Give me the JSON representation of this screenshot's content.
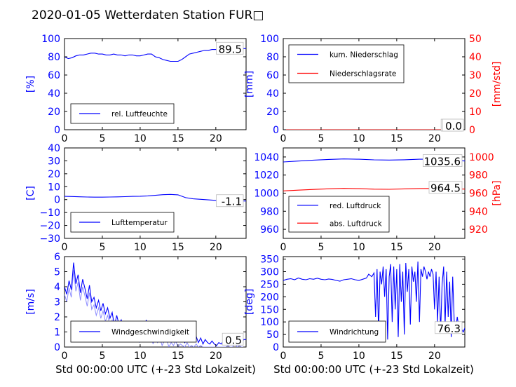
{
  "title": "2020-01-05 Wetterdaten Station FUR□",
  "xlabel": "Std 00:00:00 UTC (+-23 Std Lokalzeit)",
  "colors": {
    "primary": "#0000ff",
    "secondary": "#ff0000",
    "wind_fill": "#8c8cff"
  },
  "chart_data": [
    {
      "id": "humidity",
      "type": "line",
      "xlim": [
        0,
        24
      ],
      "xticks": [
        0,
        5,
        10,
        15,
        20
      ],
      "ylim": [
        0,
        100
      ],
      "yticks": [
        0,
        20,
        40,
        60,
        80,
        100
      ],
      "ylabel": "[%]",
      "final_value": "89.5",
      "legend_loc": "lower-left",
      "series": [
        {
          "name": "rel. Luftfeuchte",
          "color": "#0000ff",
          "x": [
            0,
            0.5,
            1,
            1.5,
            2,
            2.5,
            3,
            3.5,
            4,
            4.5,
            5,
            5.5,
            6,
            6.5,
            7,
            7.5,
            8,
            8.5,
            9,
            9.5,
            10,
            10.5,
            11,
            11.5,
            12,
            12.5,
            13,
            13.5,
            14,
            14.5,
            15,
            15.5,
            16,
            16.5,
            17,
            17.5,
            18,
            18.5,
            19,
            19.5,
            20,
            20.5,
            21,
            21.5,
            22,
            22.5,
            23,
            23.5,
            24
          ],
          "y": [
            80,
            78,
            79,
            81,
            82,
            82,
            83,
            84,
            84,
            83,
            83,
            82,
            82,
            83,
            82,
            82,
            81,
            82,
            82,
            81,
            81,
            82,
            83,
            83,
            80,
            79,
            77,
            76,
            75,
            75,
            75,
            77,
            80,
            83,
            84,
            85,
            86,
            87,
            87,
            88,
            88,
            88,
            88,
            88,
            88,
            89,
            89,
            89,
            89
          ]
        }
      ]
    },
    {
      "id": "precip",
      "type": "line",
      "xlim": [
        0,
        24
      ],
      "xticks": [
        0,
        5,
        10,
        15,
        20
      ],
      "ylim": [
        0,
        100
      ],
      "yticks": [
        0,
        20,
        40,
        60,
        80,
        100
      ],
      "ylabel": "[mm]",
      "y2lim": [
        0,
        50
      ],
      "y2ticks": [
        0,
        10,
        20,
        30,
        40,
        50
      ],
      "y2label": "[mm/std]",
      "final_value": "0.0",
      "final_value2": "0.0",
      "legend_loc": "upper-left",
      "series": [
        {
          "name": "kum. Niederschlag",
          "color": "#0000ff",
          "axis": "left",
          "x": [
            0,
            24
          ],
          "y": [
            0,
            0
          ]
        },
        {
          "name": "Niederschlagsrate",
          "color": "#ff0000",
          "axis": "right",
          "x": [
            0,
            24
          ],
          "y": [
            0,
            0
          ]
        }
      ]
    },
    {
      "id": "temperature",
      "type": "line",
      "xlim": [
        0,
        24
      ],
      "xticks": [
        0,
        5,
        10,
        15,
        20
      ],
      "ylim": [
        -30,
        40
      ],
      "yticks": [
        -30,
        -20,
        -10,
        0,
        10,
        20,
        30,
        40
      ],
      "ylabel": "[C]",
      "final_value": "-1.1",
      "legend_loc": "lower-left",
      "series": [
        {
          "name": "Lufttemperatur",
          "color": "#0000ff",
          "x": [
            0,
            1,
            2,
            3,
            4,
            5,
            6,
            7,
            8,
            9,
            10,
            11,
            12,
            13,
            14,
            15,
            16,
            17,
            18,
            19,
            20,
            21,
            22,
            23,
            24
          ],
          "y": [
            2.5,
            2.4,
            2.2,
            2.0,
            1.9,
            1.9,
            2.0,
            2.1,
            2.3,
            2.5,
            2.6,
            2.9,
            3.3,
            3.8,
            4.0,
            3.7,
            1.5,
            0.6,
            0.2,
            -0.2,
            -0.6,
            -0.9,
            -1.0,
            -1.1,
            -1.1
          ]
        }
      ]
    },
    {
      "id": "pressure",
      "type": "line",
      "xlim": [
        0,
        24
      ],
      "xticks": [
        0,
        5,
        10,
        15,
        20
      ],
      "ylim": [
        950,
        1050
      ],
      "yticks": [
        960,
        980,
        1000,
        1020,
        1040
      ],
      "y2lim": [
        910,
        1010
      ],
      "y2ticks": [
        920,
        940,
        960,
        980,
        1000
      ],
      "y2label": "[hPa]",
      "final_value": "1035.6",
      "final_value2": "964.5",
      "legend_loc": "lower-left",
      "series": [
        {
          "name": "red. Luftdruck",
          "color": "#0000ff",
          "axis": "left",
          "x": [
            0,
            2,
            4,
            6,
            8,
            10,
            12,
            14,
            16,
            18,
            20,
            22,
            24
          ],
          "y": [
            1034.5,
            1035.5,
            1036.5,
            1037.3,
            1037.8,
            1037.5,
            1036.8,
            1036.6,
            1036.9,
            1037.5,
            1037.6,
            1036.3,
            1035.6
          ]
        },
        {
          "name": "abs. Luftdruck",
          "color": "#ff0000",
          "axis": "right",
          "x": [
            0,
            2,
            4,
            6,
            8,
            10,
            12,
            14,
            16,
            18,
            20,
            22,
            24
          ],
          "y": [
            962.5,
            963.3,
            964.1,
            964.8,
            965.3,
            965.0,
            964.4,
            964.3,
            964.7,
            965.1,
            965.2,
            964.8,
            964.5
          ]
        }
      ]
    },
    {
      "id": "wind_speed",
      "type": "line",
      "xlim": [
        0,
        24
      ],
      "xticks": [
        0,
        5,
        10,
        15,
        20
      ],
      "ylim": [
        0,
        6
      ],
      "yticks": [
        0,
        1,
        2,
        3,
        4,
        5,
        6
      ],
      "ylabel": "[m/s]",
      "final_value": "0.5",
      "legend_loc": "lower-left",
      "series": [
        {
          "name": "Windgeschwindigkeit",
          "color": "#0000ff",
          "x": [
            0,
            0.3,
            0.6,
            0.9,
            1.2,
            1.5,
            1.8,
            2.1,
            2.4,
            2.7,
            3,
            3.3,
            3.6,
            3.9,
            4.2,
            4.5,
            4.8,
            5.1,
            5.4,
            5.7,
            6,
            6.3,
            6.6,
            6.9,
            7.2,
            7.5,
            7.8,
            8.1,
            8.4,
            8.7,
            9,
            9.3,
            9.6,
            9.9,
            10.2,
            10.5,
            10.8,
            11.1,
            11.4,
            11.7,
            12,
            12.3,
            12.6,
            12.9,
            13.2,
            13.5,
            13.8,
            14.1,
            14.4,
            14.7,
            15,
            15.3,
            15.6,
            15.9,
            16.2,
            16.5,
            16.8,
            17.1,
            17.4,
            17.7,
            18,
            18.3,
            18.6,
            18.9,
            19.2,
            19.5,
            19.8,
            20.1,
            20.4,
            20.7,
            21,
            21.3,
            21.6,
            21.9,
            22.2,
            22.5,
            22.8,
            23.1,
            23.4,
            23.7,
            24
          ],
          "y": [
            4.0,
            3.5,
            4.4,
            3.8,
            5.6,
            4.2,
            4.8,
            3.6,
            4.5,
            3.9,
            3.2,
            4.1,
            3.0,
            3.3,
            2.6,
            3.1,
            2.4,
            2.9,
            2.2,
            2.6,
            1.9,
            2.3,
            1.4,
            2.1,
            1.5,
            1.8,
            1.1,
            1.6,
            1.2,
            0.9,
            1.5,
            1.0,
            1.3,
            0.8,
            1.6,
            1.1,
            1.8,
            1.0,
            1.4,
            0.7,
            1.2,
            0.8,
            1.1,
            0.6,
            0.9,
            1.0,
            0.5,
            0.8,
            0.6,
            0.9,
            0.4,
            0.7,
            0.6,
            0.3,
            0.8,
            0.5,
            0.6,
            0.4,
            0.7,
            0.3,
            0.6,
            0.2,
            0.5,
            0.3,
            0.2,
            0.4,
            0.2,
            0.1,
            0.3,
            0.2,
            0.4,
            0.2,
            0.6,
            0.3,
            0.5,
            0.8,
            0.4,
            0.6,
            0.3,
            0.5,
            0.5
          ]
        }
      ]
    },
    {
      "id": "wind_dir",
      "type": "line",
      "xlim": [
        0,
        24
      ],
      "xticks": [
        0,
        5,
        10,
        15,
        20
      ],
      "ylim": [
        0,
        360
      ],
      "yticks": [
        0,
        50,
        100,
        150,
        200,
        250,
        300,
        350
      ],
      "ylabel": "[deg]",
      "final_value": "76.3",
      "legend_loc": "lower-left",
      "series": [
        {
          "name": "Windrichtung",
          "color": "#0000ff",
          "x": [
            0,
            0.5,
            1,
            1.5,
            2,
            2.5,
            3,
            3.5,
            4,
            4.5,
            5,
            5.5,
            6,
            6.5,
            7,
            7.5,
            8,
            8.5,
            9,
            9.5,
            10,
            10.5,
            11,
            11.3,
            11.7,
            12,
            12.2,
            12.4,
            12.6,
            12.8,
            13,
            13.2,
            13.4,
            13.6,
            13.8,
            14,
            14.2,
            14.4,
            14.6,
            14.8,
            15,
            15.2,
            15.4,
            15.6,
            15.8,
            16,
            16.2,
            16.4,
            16.6,
            16.8,
            17,
            17.2,
            17.4,
            17.6,
            17.8,
            18,
            18.2,
            18.4,
            18.6,
            18.8,
            19,
            19.2,
            19.4,
            19.6,
            19.8,
            20,
            20.2,
            20.4,
            20.6,
            20.8,
            21,
            21.2,
            21.4,
            21.6,
            21.8,
            22,
            22.2,
            22.4,
            22.6,
            22.8,
            23,
            23.2,
            23.4,
            23.6,
            23.8,
            24
          ],
          "y": [
            265,
            270,
            272,
            268,
            275,
            270,
            268,
            272,
            270,
            274,
            270,
            268,
            271,
            269,
            265,
            262,
            268,
            270,
            272,
            268,
            265,
            270,
            275,
            290,
            280,
            295,
            120,
            310,
            60,
            300,
            250,
            320,
            200,
            310,
            30,
            280,
            330,
            100,
            320,
            150,
            310,
            40,
            330,
            180,
            300,
            50,
            335,
            220,
            310,
            90,
            320,
            260,
            300,
            180,
            340,
            100,
            310,
            280,
            320,
            300,
            270,
            300,
            280,
            310,
            290,
            150,
            300,
            100,
            280,
            60,
            250,
            320,
            90,
            300,
            120,
            260,
            40,
            280,
            100,
            70,
            120,
            80,
            90,
            70,
            60,
            76
          ]
        }
      ]
    }
  ]
}
